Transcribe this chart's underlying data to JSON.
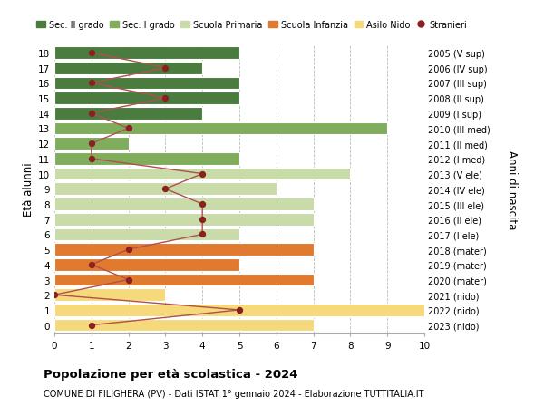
{
  "ages": [
    0,
    1,
    2,
    3,
    4,
    5,
    6,
    7,
    8,
    9,
    10,
    11,
    12,
    13,
    14,
    15,
    16,
    17,
    18
  ],
  "right_labels": [
    "2023 (nido)",
    "2022 (nido)",
    "2021 (nido)",
    "2020 (mater)",
    "2019 (mater)",
    "2018 (mater)",
    "2017 (I ele)",
    "2016 (II ele)",
    "2015 (III ele)",
    "2014 (IV ele)",
    "2013 (V ele)",
    "2012 (I med)",
    "2011 (II med)",
    "2010 (III med)",
    "2009 (I sup)",
    "2008 (II sup)",
    "2007 (III sup)",
    "2006 (IV sup)",
    "2005 (V sup)"
  ],
  "bar_values": [
    7,
    10,
    3,
    7,
    5,
    7,
    5,
    7,
    7,
    6,
    8,
    5,
    2,
    9,
    4,
    5,
    5,
    4,
    5
  ],
  "bar_colors": [
    "#f5d97a",
    "#f5d97a",
    "#f5d97a",
    "#e07a2f",
    "#e07a2f",
    "#e07a2f",
    "#c8dba8",
    "#c8dba8",
    "#c8dba8",
    "#c8dba8",
    "#c8dba8",
    "#7fad5c",
    "#7fad5c",
    "#7fad5c",
    "#4a7c3f",
    "#4a7c3f",
    "#4a7c3f",
    "#4a7c3f",
    "#4a7c3f"
  ],
  "stranieri_values": [
    1,
    5,
    0,
    2,
    1,
    2,
    4,
    4,
    4,
    3,
    4,
    1,
    1,
    2,
    1,
    3,
    1,
    3,
    1
  ],
  "stranieri_color": "#8b2020",
  "stranieri_line_color": "#b05050",
  "legend_labels": [
    "Sec. II grado",
    "Sec. I grado",
    "Scuola Primaria",
    "Scuola Infanzia",
    "Asilo Nido",
    "Stranieri"
  ],
  "legend_colors": [
    "#4a7c3f",
    "#7fad5c",
    "#c8dba8",
    "#e07a2f",
    "#f5d97a",
    "#8b2020"
  ],
  "title": "Popolazione per età scolastica - 2024",
  "subtitle": "COMUNE DI FILIGHERA (PV) - Dati ISTAT 1° gennaio 2024 - Elaborazione TUTTITALIA.IT",
  "ylabel": "Età alunni",
  "ylabel2": "Anni di nascita",
  "xlim": [
    0,
    10
  ],
  "background_color": "#ffffff",
  "grid_color": "#bbbbbb"
}
